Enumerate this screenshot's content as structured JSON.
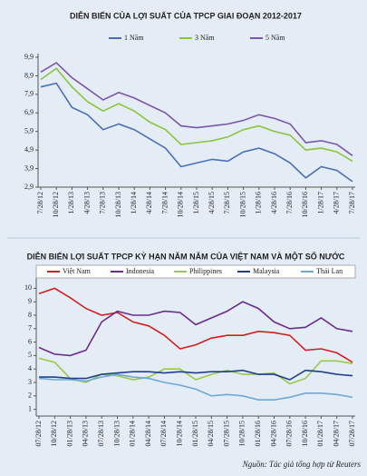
{
  "chart_data": [
    {
      "type": "line",
      "title": "DIỄN BIẾN CỦA LỢI SUẤT CỦA TPCP GIAI ĐOẠN 2012-2017",
      "categories": [
        "7/28/12",
        "10/28/12",
        "1/28/13",
        "4/28/13",
        "7/28/13",
        "10/28/13",
        "1/28/14",
        "4/28/14",
        "7/28/14",
        "10/28/14",
        "1/28/15",
        "4/28/15",
        "7/28/15",
        "10/28/15",
        "1/28/16",
        "4/28/16",
        "7/28/16",
        "10/28/16",
        "1/28/17",
        "4/28/17",
        "7/28/17"
      ],
      "series": [
        {
          "name": "1 Năm",
          "color": "#4a6fb5",
          "values": [
            8.3,
            8.5,
            7.2,
            6.8,
            6.0,
            6.3,
            6.0,
            5.5,
            5.0,
            4.0,
            4.2,
            4.4,
            4.3,
            4.8,
            5.0,
            4.7,
            4.2,
            3.4,
            4.0,
            3.8,
            3.2
          ]
        },
        {
          "name": "3 Năm",
          "color": "#8cc43c",
          "values": [
            8.7,
            9.3,
            8.3,
            7.5,
            7.0,
            7.4,
            7.0,
            6.4,
            6.0,
            5.2,
            5.3,
            5.4,
            5.6,
            6.0,
            6.2,
            5.9,
            5.7,
            4.9,
            5.0,
            4.8,
            4.3
          ]
        },
        {
          "name": "5 Năm",
          "color": "#7b55a8",
          "values": [
            9.1,
            9.6,
            8.8,
            8.2,
            7.6,
            8.0,
            7.7,
            7.3,
            6.9,
            6.2,
            6.1,
            6.2,
            6.3,
            6.5,
            6.8,
            6.6,
            6.3,
            5.3,
            5.4,
            5.2,
            4.6
          ]
        }
      ],
      "ylim": [
        2.9,
        9.9
      ],
      "yticks": [
        {
          "value": 2.9,
          "label": "2,9"
        },
        {
          "value": 3.9,
          "label": "3,9"
        },
        {
          "value": 4.9,
          "label": "4,9"
        },
        {
          "value": 5.9,
          "label": "5,9"
        },
        {
          "value": 6.9,
          "label": "6,9"
        },
        {
          "value": 7.9,
          "label": "7,9"
        },
        {
          "value": 8.9,
          "label": "8,9"
        },
        {
          "value": 9.9,
          "label": "9,9"
        }
      ]
    },
    {
      "type": "line",
      "title": "DIỄN BIẾN LỢI SUẤT TPCP KỲ HẠN NĂM NĂM CỦA VIỆT NAM VÀ MỘT SỐ NƯỚC",
      "categories": [
        "07/28/12",
        "10/28/12",
        "01/28/13",
        "04/28/13",
        "07/28/13",
        "10/28/13",
        "01/28/14",
        "04/28/14",
        "07/28/14",
        "10/28/14",
        "01/28/15",
        "04/28/15",
        "07/28/15",
        "10/28/15",
        "01/28/16",
        "04/28/16",
        "07/28/16",
        "10/28/16",
        "01/28/17",
        "04/28/17",
        "07/28/17"
      ],
      "series": [
        {
          "name": "Việt Nam",
          "color": "#d0201f",
          "values": [
            9.6,
            10.0,
            9.3,
            8.5,
            8.0,
            8.2,
            7.5,
            7.2,
            6.5,
            5.5,
            5.8,
            6.3,
            6.5,
            6.5,
            6.8,
            6.7,
            6.5,
            5.4,
            5.5,
            5.2,
            4.5
          ]
        },
        {
          "name": "Indonesia",
          "color": "#6a2c8e",
          "values": [
            5.6,
            5.1,
            5.0,
            5.4,
            7.5,
            8.3,
            8.0,
            8.0,
            8.3,
            8.2,
            7.3,
            7.8,
            8.3,
            9.0,
            8.5,
            7.5,
            7.0,
            7.1,
            7.8,
            7.0,
            6.8
          ]
        },
        {
          "name": "Philippines",
          "color": "#9bc84a",
          "values": [
            4.8,
            4.5,
            3.3,
            3.0,
            3.6,
            3.5,
            3.2,
            3.4,
            4.0,
            4.0,
            3.2,
            3.6,
            3.9,
            3.6,
            3.6,
            3.7,
            2.9,
            3.3,
            4.6,
            4.6,
            4.4
          ]
        },
        {
          "name": "Malaysia",
          "color": "#1f3f8a",
          "values": [
            3.4,
            3.4,
            3.3,
            3.3,
            3.6,
            3.7,
            3.8,
            3.8,
            3.7,
            3.8,
            3.7,
            3.8,
            3.8,
            3.9,
            3.6,
            3.6,
            3.2,
            3.9,
            3.8,
            3.6,
            3.5
          ]
        },
        {
          "name": "Thái Lan",
          "color": "#6fa8d6",
          "values": [
            3.3,
            3.2,
            3.2,
            3.1,
            3.4,
            3.6,
            3.4,
            3.3,
            3.0,
            2.8,
            2.5,
            2.0,
            2.1,
            2.0,
            1.7,
            1.7,
            1.9,
            2.2,
            2.2,
            2.1,
            1.9
          ]
        }
      ],
      "ylim": [
        0.5,
        10.5
      ],
      "yticks": [
        1,
        2,
        3,
        4,
        5,
        6,
        7,
        8,
        9,
        10
      ],
      "source": "Nguồn: Tác giả tổng hợp từ Reuters"
    }
  ]
}
